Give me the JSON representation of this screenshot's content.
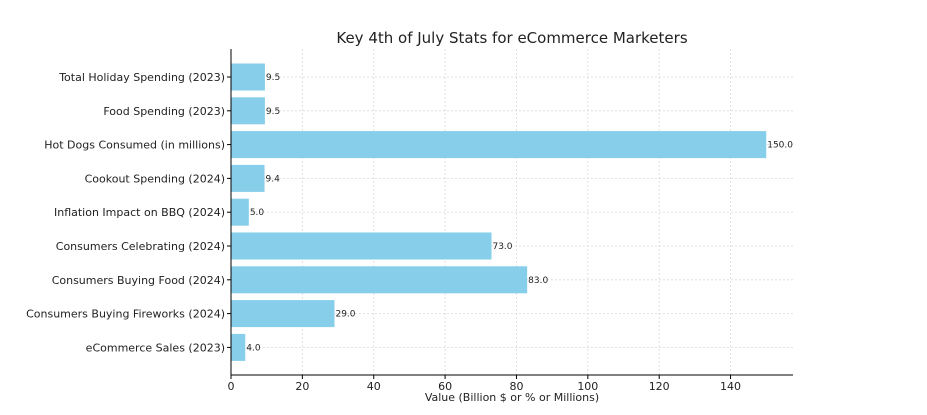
{
  "chart_data": {
    "type": "bar",
    "orientation": "horizontal",
    "title": "Key 4th of July Stats for eCommerce Marketers",
    "xlabel": "Value (Billion $ or % or Millions)",
    "ylabel": "",
    "xlim": [
      0,
      157.5
    ],
    "xticks": [
      0,
      20,
      40,
      60,
      80,
      100,
      120,
      140
    ],
    "grid": true,
    "bar_color": "#87CEEB",
    "categories": [
      "Total Holiday Spending (2023)",
      "Food Spending (2023)",
      "Hot Dogs Consumed (in millions)",
      "Cookout Spending (2024)",
      "Inflation Impact on BBQ (2024)",
      "Consumers Celebrating (2024)",
      "Consumers Buying Food (2024)",
      "Consumers Buying Fireworks (2024)",
      "eCommerce Sales (2023)"
    ],
    "values": [
      9.5,
      9.5,
      150.0,
      9.4,
      5.0,
      73.0,
      83.0,
      29.0,
      4.0
    ],
    "value_labels": [
      "9.5",
      "9.5",
      "150.0",
      "9.4",
      "5.0",
      "73.0",
      "83.0",
      "29.0",
      "4.0"
    ]
  }
}
